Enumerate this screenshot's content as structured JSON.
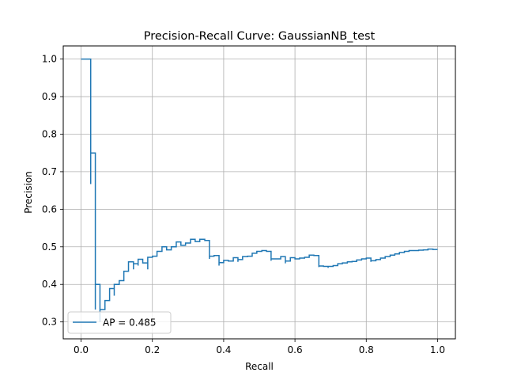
{
  "chart_data": {
    "type": "line",
    "title": "Precision-Recall Curve: GaussianNB_test",
    "xlabel": "Recall",
    "ylabel": "Precision",
    "xlim": [
      -0.05,
      1.05
    ],
    "ylim": [
      0.255,
      1.035
    ],
    "xticks": [
      "0.0",
      "0.2",
      "0.4",
      "0.6",
      "0.8",
      "1.0"
    ],
    "yticks": [
      "0.3",
      "0.4",
      "0.5",
      "0.6",
      "0.7",
      "0.8",
      "0.9",
      "1.0"
    ],
    "grid": true,
    "legend_position": "lower-left",
    "drawstyle": "steps-post",
    "series": [
      {
        "name": "AP = 0.485",
        "color": "#1f77b4",
        "points": [
          [
            0.0,
            1.0
          ],
          [
            0.027,
            1.0
          ],
          [
            0.027,
            0.667
          ],
          [
            0.027,
            0.75
          ],
          [
            0.04,
            0.75
          ],
          [
            0.04,
            0.333
          ],
          [
            0.04,
            0.4
          ],
          [
            0.053,
            0.4
          ],
          [
            0.053,
            0.3
          ],
          [
            0.053,
            0.333
          ],
          [
            0.067,
            0.333
          ],
          [
            0.067,
            0.357
          ],
          [
            0.08,
            0.357
          ],
          [
            0.08,
            0.389
          ],
          [
            0.093,
            0.389
          ],
          [
            0.093,
            0.37
          ],
          [
            0.093,
            0.4
          ],
          [
            0.107,
            0.4
          ],
          [
            0.107,
            0.41
          ],
          [
            0.12,
            0.41
          ],
          [
            0.12,
            0.435
          ],
          [
            0.133,
            0.435
          ],
          [
            0.133,
            0.46
          ],
          [
            0.147,
            0.46
          ],
          [
            0.147,
            0.44
          ],
          [
            0.147,
            0.455
          ],
          [
            0.16,
            0.455
          ],
          [
            0.16,
            0.45
          ],
          [
            0.16,
            0.467
          ],
          [
            0.173,
            0.467
          ],
          [
            0.173,
            0.457
          ],
          [
            0.187,
            0.457
          ],
          [
            0.187,
            0.44
          ],
          [
            0.187,
            0.472
          ],
          [
            0.2,
            0.472
          ],
          [
            0.2,
            0.475
          ],
          [
            0.213,
            0.475
          ],
          [
            0.213,
            0.488
          ],
          [
            0.227,
            0.488
          ],
          [
            0.227,
            0.5
          ],
          [
            0.24,
            0.5
          ],
          [
            0.24,
            0.492
          ],
          [
            0.253,
            0.492
          ],
          [
            0.253,
            0.5
          ],
          [
            0.267,
            0.5
          ],
          [
            0.267,
            0.513
          ],
          [
            0.28,
            0.513
          ],
          [
            0.28,
            0.504
          ],
          [
            0.293,
            0.504
          ],
          [
            0.293,
            0.51
          ],
          [
            0.307,
            0.51
          ],
          [
            0.307,
            0.52
          ],
          [
            0.32,
            0.52
          ],
          [
            0.32,
            0.514
          ],
          [
            0.333,
            0.514
          ],
          [
            0.333,
            0.52
          ],
          [
            0.347,
            0.52
          ],
          [
            0.347,
            0.517
          ],
          [
            0.36,
            0.517
          ],
          [
            0.36,
            0.468
          ],
          [
            0.36,
            0.475
          ],
          [
            0.373,
            0.475
          ],
          [
            0.373,
            0.477
          ],
          [
            0.387,
            0.477
          ],
          [
            0.387,
            0.45
          ],
          [
            0.387,
            0.458
          ],
          [
            0.4,
            0.458
          ],
          [
            0.4,
            0.464
          ],
          [
            0.413,
            0.464
          ],
          [
            0.413,
            0.462
          ],
          [
            0.427,
            0.462
          ],
          [
            0.427,
            0.471
          ],
          [
            0.44,
            0.471
          ],
          [
            0.44,
            0.46
          ],
          [
            0.44,
            0.466
          ],
          [
            0.453,
            0.466
          ],
          [
            0.453,
            0.474
          ],
          [
            0.467,
            0.474
          ],
          [
            0.467,
            0.475
          ],
          [
            0.48,
            0.475
          ],
          [
            0.48,
            0.483
          ],
          [
            0.493,
            0.483
          ],
          [
            0.493,
            0.488
          ],
          [
            0.507,
            0.488
          ],
          [
            0.507,
            0.49
          ],
          [
            0.52,
            0.49
          ],
          [
            0.52,
            0.488
          ],
          [
            0.533,
            0.488
          ],
          [
            0.533,
            0.463
          ],
          [
            0.533,
            0.468
          ],
          [
            0.547,
            0.468
          ],
          [
            0.547,
            0.468
          ],
          [
            0.56,
            0.468
          ],
          [
            0.56,
            0.474
          ],
          [
            0.573,
            0.474
          ],
          [
            0.573,
            0.456
          ],
          [
            0.573,
            0.462
          ],
          [
            0.587,
            0.462
          ],
          [
            0.587,
            0.471
          ],
          [
            0.6,
            0.471
          ],
          [
            0.6,
            0.468
          ],
          [
            0.613,
            0.468
          ],
          [
            0.613,
            0.47
          ],
          [
            0.627,
            0.47
          ],
          [
            0.627,
            0.472
          ],
          [
            0.64,
            0.472
          ],
          [
            0.64,
            0.478
          ],
          [
            0.653,
            0.478
          ],
          [
            0.653,
            0.477
          ],
          [
            0.667,
            0.477
          ],
          [
            0.667,
            0.446
          ],
          [
            0.667,
            0.449
          ],
          [
            0.68,
            0.449
          ],
          [
            0.68,
            0.448
          ],
          [
            0.693,
            0.448
          ],
          [
            0.693,
            0.444
          ],
          [
            0.693,
            0.448
          ],
          [
            0.707,
            0.448
          ],
          [
            0.707,
            0.45
          ],
          [
            0.72,
            0.45
          ],
          [
            0.72,
            0.455
          ],
          [
            0.733,
            0.455
          ],
          [
            0.733,
            0.457
          ],
          [
            0.747,
            0.457
          ],
          [
            0.747,
            0.46
          ],
          [
            0.76,
            0.46
          ],
          [
            0.76,
            0.461
          ],
          [
            0.773,
            0.461
          ],
          [
            0.773,
            0.465
          ],
          [
            0.787,
            0.465
          ],
          [
            0.787,
            0.468
          ],
          [
            0.8,
            0.468
          ],
          [
            0.8,
            0.47
          ],
          [
            0.813,
            0.47
          ],
          [
            0.813,
            0.46
          ],
          [
            0.813,
            0.463
          ],
          [
            0.827,
            0.463
          ],
          [
            0.827,
            0.466
          ],
          [
            0.84,
            0.466
          ],
          [
            0.84,
            0.47
          ],
          [
            0.853,
            0.47
          ],
          [
            0.853,
            0.474
          ],
          [
            0.867,
            0.474
          ],
          [
            0.867,
            0.478
          ],
          [
            0.88,
            0.478
          ],
          [
            0.88,
            0.481
          ],
          [
            0.893,
            0.481
          ],
          [
            0.893,
            0.485
          ],
          [
            0.907,
            0.485
          ],
          [
            0.907,
            0.488
          ],
          [
            0.92,
            0.488
          ],
          [
            0.92,
            0.49
          ],
          [
            0.933,
            0.49
          ],
          [
            0.933,
            0.49
          ],
          [
            0.947,
            0.49
          ],
          [
            0.947,
            0.491
          ],
          [
            0.96,
            0.491
          ],
          [
            0.96,
            0.492
          ],
          [
            0.973,
            0.492
          ],
          [
            0.973,
            0.494
          ],
          [
            0.987,
            0.494
          ],
          [
            0.987,
            0.493
          ],
          [
            1.0,
            0.493
          ]
        ]
      }
    ]
  }
}
